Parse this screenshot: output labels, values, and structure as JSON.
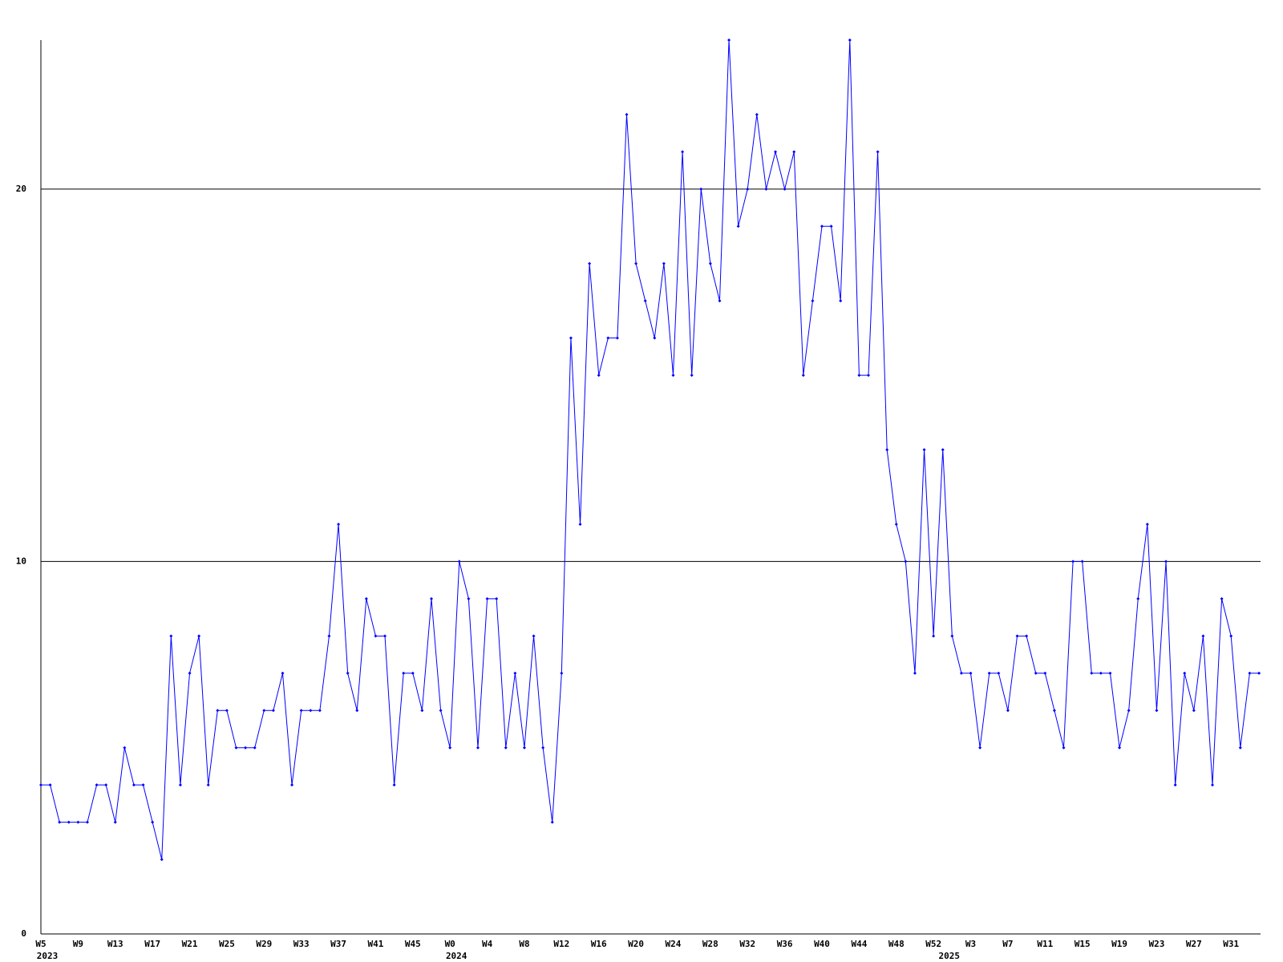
{
  "chart_data": {
    "type": "line",
    "categories": [
      "W5",
      null,
      null,
      null,
      "W9",
      null,
      null,
      null,
      "W13",
      null,
      null,
      null,
      "W17",
      null,
      null,
      null,
      "W21",
      null,
      null,
      null,
      "W25",
      null,
      null,
      null,
      "W29",
      null,
      null,
      null,
      "W33",
      null,
      null,
      null,
      "W37",
      null,
      null,
      null,
      "W41",
      null,
      null,
      null,
      "W45",
      null,
      null,
      null,
      "W0",
      null,
      null,
      null,
      "W4",
      null,
      null,
      null,
      "W8",
      null,
      null,
      null,
      "W12",
      null,
      null,
      null,
      "W16",
      null,
      null,
      null,
      "W20",
      null,
      null,
      null,
      "W24",
      null,
      null,
      null,
      "W28",
      null,
      null,
      null,
      "W32",
      null,
      null,
      null,
      "W36",
      null,
      null,
      null,
      "W40",
      null,
      null,
      null,
      "W44",
      null,
      null,
      null,
      "W48",
      null,
      null,
      null,
      "W52",
      null,
      null,
      null,
      "W3",
      null,
      null,
      null,
      "W7",
      null,
      null,
      null,
      "W11",
      null,
      null,
      null,
      "W15",
      null,
      null,
      null,
      "W19",
      null,
      null,
      null,
      "W23",
      null,
      null,
      null,
      "W27",
      null,
      null,
      null,
      "W31",
      null,
      null,
      null
    ],
    "years": [
      "2023",
      null,
      null,
      null,
      null,
      null,
      null,
      null,
      null,
      null,
      null,
      null,
      null,
      null,
      null,
      null,
      null,
      null,
      null,
      null,
      null,
      null,
      null,
      null,
      null,
      null,
      null,
      null,
      null,
      null,
      null,
      null,
      null,
      null,
      null,
      null,
      null,
      null,
      null,
      null,
      null,
      null,
      null,
      null,
      "2024",
      null,
      null,
      null,
      null,
      null,
      null,
      null,
      null,
      null,
      null,
      null,
      null,
      null,
      null,
      null,
      null,
      null,
      null,
      null,
      null,
      null,
      null,
      null,
      null,
      null,
      null,
      null,
      null,
      null,
      null,
      null,
      null,
      null,
      null,
      null,
      null,
      null,
      null,
      null,
      null,
      null,
      null,
      null,
      null,
      null,
      null,
      null,
      null,
      null,
      null,
      null,
      null,
      "2025",
      null,
      null,
      null,
      null,
      null,
      null,
      null,
      null,
      null,
      null,
      null,
      null,
      null,
      null,
      null,
      null,
      null,
      null,
      null,
      null,
      null,
      null,
      null,
      null,
      null,
      null,
      null,
      null,
      null,
      null,
      null,
      null,
      null,
      null
    ],
    "values": [
      4,
      4,
      3,
      3,
      3,
      3,
      4,
      4,
      3,
      5,
      4,
      4,
      3,
      2,
      8,
      4,
      7,
      8,
      4,
      6,
      6,
      5,
      5,
      5,
      6,
      6,
      7,
      4,
      6,
      6,
      6,
      8,
      11,
      7,
      6,
      9,
      8,
      8,
      4,
      7,
      7,
      6,
      9,
      6,
      5,
      10,
      9,
      5,
      9,
      9,
      5,
      7,
      5,
      8,
      5,
      3,
      7,
      16,
      11,
      18,
      15,
      16,
      16,
      22,
      18,
      17,
      16,
      18,
      15,
      21,
      15,
      20,
      18,
      17,
      24,
      19,
      20,
      22,
      20,
      21,
      20,
      21,
      15,
      17,
      19,
      19,
      17,
      24,
      15,
      15,
      21,
      13,
      11,
      10,
      7,
      13,
      8,
      13,
      8,
      7,
      7,
      5,
      7,
      7,
      6,
      8,
      8,
      7,
      7,
      6,
      5,
      10,
      10,
      7,
      7,
      7,
      5,
      6,
      9,
      11,
      6,
      10,
      4,
      7,
      6,
      8,
      4,
      9,
      8,
      5,
      7,
      7
    ],
    "color": "#0000ff",
    "ylim": [
      0,
      24
    ],
    "yticks": [
      0,
      10,
      20
    ],
    "grid": true
  }
}
